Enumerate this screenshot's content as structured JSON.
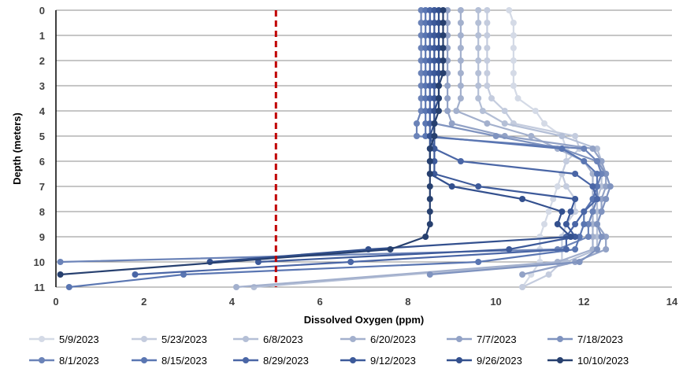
{
  "chart_data": {
    "type": "line",
    "title": "",
    "xlabel": "Dissolved Oxygen (ppm)",
    "ylabel": "Depth (meters)",
    "xlim": [
      0,
      14
    ],
    "ylim": [
      0,
      11
    ],
    "y_inverted": true,
    "x_ticks": [
      "0",
      "2",
      "4",
      "6",
      "8",
      "10",
      "12",
      "14"
    ],
    "y_ticks": [
      "0",
      "1",
      "2",
      "3",
      "4",
      "5",
      "6",
      "7",
      "8",
      "9",
      "10",
      "11"
    ],
    "grid": "horizontal",
    "legend_position": "bottom",
    "threshold_line": {
      "x": 5,
      "color": "#c00000",
      "style": "dashed"
    },
    "series": [
      {
        "name": "5/9/2023",
        "color": "#d4dae6",
        "points": [
          [
            10.3,
            0
          ],
          [
            10.4,
            0.5
          ],
          [
            10.4,
            1
          ],
          [
            10.4,
            1.5
          ],
          [
            10.4,
            2
          ],
          [
            10.4,
            2.5
          ],
          [
            10.4,
            3
          ],
          [
            10.5,
            3.5
          ],
          [
            10.9,
            4
          ],
          [
            11.1,
            4.5
          ],
          [
            11.5,
            5
          ],
          [
            11.6,
            5.5
          ],
          [
            11.6,
            6
          ],
          [
            11.5,
            6.5
          ],
          [
            11.4,
            7
          ],
          [
            11.3,
            7.5
          ],
          [
            11.2,
            8
          ],
          [
            11.1,
            8.5
          ],
          [
            11,
            9
          ],
          [
            11,
            9.5
          ],
          [
            11,
            10
          ],
          [
            10.8,
            10.5
          ],
          [
            10.6,
            11
          ]
        ]
      },
      {
        "name": "5/23/2023",
        "color": "#c4ccde",
        "points": [
          [
            9.8,
            0
          ],
          [
            9.8,
            0.5
          ],
          [
            9.8,
            1
          ],
          [
            9.8,
            1.5
          ],
          [
            9.8,
            2
          ],
          [
            9.8,
            2.5
          ],
          [
            9.8,
            3
          ],
          [
            9.9,
            3.5
          ],
          [
            10.2,
            4
          ],
          [
            10.4,
            4.5
          ],
          [
            11.8,
            5
          ],
          [
            11.9,
            5.5
          ],
          [
            11.6,
            6
          ],
          [
            11.5,
            6.5
          ],
          [
            11.6,
            7
          ],
          [
            11.8,
            7.5
          ],
          [
            11.8,
            8
          ],
          [
            11.6,
            8.5
          ],
          [
            11.5,
            9
          ],
          [
            11.5,
            9.5
          ],
          [
            11.5,
            10
          ],
          [
            11.2,
            10.5
          ],
          [
            10.6,
            11
          ]
        ]
      },
      {
        "name": "6/8/2023",
        "color": "#b4bfd6",
        "points": [
          [
            9.6,
            0
          ],
          [
            9.6,
            0.5
          ],
          [
            9.6,
            1
          ],
          [
            9.6,
            1.5
          ],
          [
            9.6,
            2
          ],
          [
            9.6,
            2.5
          ],
          [
            9.6,
            3
          ],
          [
            9.6,
            3.5
          ],
          [
            9.7,
            4
          ],
          [
            10.2,
            4.5
          ],
          [
            11.5,
            5
          ],
          [
            12.3,
            5.5
          ],
          [
            12.4,
            6
          ],
          [
            12.4,
            6.5
          ],
          [
            12.4,
            7
          ],
          [
            12.3,
            7.5
          ],
          [
            12.3,
            8
          ],
          [
            12.3,
            8.5
          ],
          [
            12.3,
            9
          ],
          [
            12.3,
            9.5
          ],
          [
            11.6,
            10
          ],
          [
            4.5,
            11
          ]
        ]
      },
      {
        "name": "6/20/2023",
        "color": "#a3b0cd",
        "points": [
          [
            9.2,
            0
          ],
          [
            9.2,
            0.5
          ],
          [
            9.2,
            1
          ],
          [
            9.2,
            1.5
          ],
          [
            9.2,
            2
          ],
          [
            9.2,
            2.5
          ],
          [
            9.2,
            3
          ],
          [
            9.2,
            3.5
          ],
          [
            9.1,
            4
          ],
          [
            9.8,
            4.5
          ],
          [
            10.8,
            5
          ],
          [
            11.4,
            5.5
          ],
          [
            12,
            6
          ],
          [
            12.2,
            6.5
          ],
          [
            12.2,
            7
          ],
          [
            12.2,
            7.5
          ],
          [
            12.2,
            8
          ],
          [
            12.2,
            8.5
          ],
          [
            12.2,
            9
          ],
          [
            12.2,
            9.5
          ],
          [
            11.4,
            10
          ],
          [
            4.1,
            11
          ]
        ]
      },
      {
        "name": "7/7/2023",
        "color": "#92a2c6",
        "points": [
          [
            8.9,
            0
          ],
          [
            8.9,
            0.5
          ],
          [
            8.9,
            1
          ],
          [
            8.9,
            1.5
          ],
          [
            8.9,
            2
          ],
          [
            8.9,
            2.5
          ],
          [
            8.9,
            3
          ],
          [
            8.9,
            3.5
          ],
          [
            8.9,
            4
          ],
          [
            9,
            4.5
          ],
          [
            10.2,
            5
          ],
          [
            12.2,
            5.5
          ],
          [
            12.4,
            6
          ],
          [
            12.5,
            6.5
          ],
          [
            12.5,
            7
          ],
          [
            12.4,
            7.5
          ],
          [
            12.4,
            8
          ],
          [
            12.3,
            8.5
          ],
          [
            12.5,
            9
          ],
          [
            12.5,
            9.5
          ],
          [
            11.8,
            10
          ],
          [
            10.6,
            10.5
          ]
        ]
      },
      {
        "name": "7/18/2023",
        "color": "#7f93bf",
        "points": [
          [
            8.6,
            0
          ],
          [
            8.6,
            0.5
          ],
          [
            8.6,
            1
          ],
          [
            8.6,
            1.5
          ],
          [
            8.6,
            2
          ],
          [
            8.6,
            2.5
          ],
          [
            8.6,
            3
          ],
          [
            8.6,
            3.5
          ],
          [
            8.6,
            4
          ],
          [
            8.6,
            4.5
          ],
          [
            10,
            5
          ],
          [
            11.5,
            5.5
          ],
          [
            12.3,
            6
          ],
          [
            12.5,
            6.5
          ],
          [
            12.6,
            7
          ],
          [
            12.5,
            7.5
          ],
          [
            12.4,
            8
          ],
          [
            12.3,
            8.5
          ],
          [
            12.4,
            9
          ],
          [
            12.3,
            9.5
          ],
          [
            11.9,
            10
          ],
          [
            8.5,
            10.5
          ]
        ]
      },
      {
        "name": "8/1/2023",
        "color": "#6b83b8",
        "points": [
          [
            8.3,
            0
          ],
          [
            8.3,
            0.5
          ],
          [
            8.3,
            1
          ],
          [
            8.3,
            1.5
          ],
          [
            8.3,
            2
          ],
          [
            8.3,
            2.5
          ],
          [
            8.3,
            3
          ],
          [
            8.3,
            3.5
          ],
          [
            8.3,
            4
          ],
          [
            8.2,
            4.5
          ],
          [
            8.2,
            5
          ],
          [
            12,
            5.5
          ],
          [
            12.3,
            6
          ],
          [
            12.4,
            6.5
          ],
          [
            12.3,
            7
          ],
          [
            12.3,
            7.5
          ],
          [
            12.2,
            8
          ],
          [
            12.1,
            8.5
          ],
          [
            12.1,
            9
          ],
          [
            11.4,
            9.5
          ],
          [
            0.1,
            10
          ]
        ]
      },
      {
        "name": "8/15/2023",
        "color": "#5a76b2",
        "points": [
          [
            8.4,
            0
          ],
          [
            8.4,
            0.5
          ],
          [
            8.4,
            1
          ],
          [
            8.4,
            1.5
          ],
          [
            8.4,
            2
          ],
          [
            8.4,
            2.5
          ],
          [
            8.4,
            3
          ],
          [
            8.4,
            3.5
          ],
          [
            8.4,
            4
          ],
          [
            8.4,
            4.5
          ],
          [
            8.4,
            5
          ],
          [
            11.5,
            5.5
          ],
          [
            12,
            6
          ],
          [
            12.3,
            6.5
          ],
          [
            12.3,
            7
          ],
          [
            12.2,
            7.5
          ],
          [
            12,
            8
          ],
          [
            12,
            8.5
          ],
          [
            11.9,
            9
          ],
          [
            11.8,
            9.5
          ],
          [
            9.6,
            10
          ],
          [
            2.9,
            10.5
          ],
          [
            0.3,
            11
          ]
        ]
      },
      {
        "name": "8/29/2023",
        "color": "#4a66a6",
        "points": [
          [
            8.5,
            0
          ],
          [
            8.5,
            0.5
          ],
          [
            8.5,
            1
          ],
          [
            8.5,
            1.5
          ],
          [
            8.5,
            2
          ],
          [
            8.5,
            2.5
          ],
          [
            8.5,
            3
          ],
          [
            8.5,
            3.5
          ],
          [
            8.5,
            4
          ],
          [
            8.5,
            4.5
          ],
          [
            8.5,
            5
          ],
          [
            8.6,
            5.5
          ],
          [
            9.2,
            6
          ],
          [
            11.8,
            6.5
          ],
          [
            12.2,
            7
          ],
          [
            12.3,
            7.5
          ],
          [
            12,
            8
          ],
          [
            11.8,
            8.5
          ],
          [
            11.6,
            9
          ],
          [
            11.6,
            9.5
          ],
          [
            6.7,
            10
          ],
          [
            1.8,
            10.5
          ]
        ]
      },
      {
        "name": "9/12/2023",
        "color": "#3d5a9a",
        "points": [
          [
            8.6,
            0
          ],
          [
            8.6,
            0.5
          ],
          [
            8.6,
            1
          ],
          [
            8.6,
            1.5
          ],
          [
            8.6,
            2
          ],
          [
            8.6,
            2.5
          ],
          [
            8.6,
            3
          ],
          [
            8.6,
            3.5
          ],
          [
            8.6,
            4
          ],
          [
            8.6,
            4.5
          ],
          [
            8.6,
            5
          ],
          [
            8.6,
            5.5
          ],
          [
            8.6,
            6
          ],
          [
            8.6,
            6.5
          ],
          [
            9.6,
            7
          ],
          [
            11.8,
            7.5
          ],
          [
            11.7,
            8
          ],
          [
            11.6,
            8.5
          ],
          [
            11.8,
            9
          ],
          [
            10.3,
            9.5
          ],
          [
            4.6,
            10
          ]
        ]
      },
      {
        "name": "9/26/2023",
        "color": "#33508e",
        "points": [
          [
            8.7,
            0
          ],
          [
            8.7,
            0.5
          ],
          [
            8.7,
            1
          ],
          [
            8.7,
            1.5
          ],
          [
            8.7,
            2
          ],
          [
            8.7,
            2.5
          ],
          [
            8.7,
            3
          ],
          [
            8.7,
            3.5
          ],
          [
            8.6,
            4
          ],
          [
            8.6,
            4.5
          ],
          [
            8.5,
            5
          ],
          [
            8.5,
            5.5
          ],
          [
            8.5,
            6
          ],
          [
            8.5,
            6.5
          ],
          [
            9,
            7
          ],
          [
            10.6,
            7.5
          ],
          [
            11.5,
            8
          ],
          [
            11.4,
            8.5
          ],
          [
            11.7,
            9
          ],
          [
            7.1,
            9.5
          ],
          [
            3.5,
            10
          ]
        ]
      },
      {
        "name": "10/10/2023",
        "color": "#27406f",
        "points": [
          [
            8.8,
            0
          ],
          [
            8.8,
            0.5
          ],
          [
            8.8,
            1
          ],
          [
            8.8,
            1.5
          ],
          [
            8.8,
            2
          ],
          [
            8.8,
            2.5
          ],
          [
            8.7,
            3
          ],
          [
            8.7,
            3.5
          ],
          [
            8.7,
            4
          ],
          [
            8.6,
            4.5
          ],
          [
            8.6,
            5
          ],
          [
            8.5,
            5.5
          ],
          [
            8.5,
            6
          ],
          [
            8.5,
            6.5
          ],
          [
            8.5,
            7
          ],
          [
            8.5,
            7.5
          ],
          [
            8.5,
            8
          ],
          [
            8.5,
            8.5
          ],
          [
            8.4,
            9
          ],
          [
            7.6,
            9.5
          ],
          [
            0.1,
            10.5
          ]
        ]
      }
    ]
  }
}
